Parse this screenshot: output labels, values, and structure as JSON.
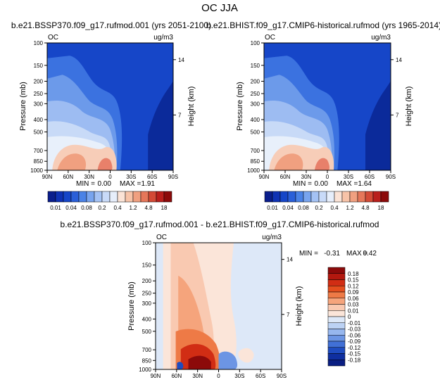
{
  "figure": {
    "title": "OC JJA"
  },
  "chart_data": [
    {
      "type": "contour",
      "title": "b.e21.BSSP370.f09_g17.rufmod.001 (yrs 2051-2100)",
      "corner_left": "OC",
      "corner_right": "ug/m3",
      "ylabel": "Pressure (mb)",
      "ylabel_right": "Height (km)",
      "pressure_ticks": [
        "100",
        "150",
        "200",
        "250",
        "300",
        "400",
        "500",
        "700",
        "850",
        "1000"
      ],
      "height_ticks": [
        "14",
        "7"
      ],
      "lat_ticks": [
        "90N",
        "60N",
        "30N",
        "0",
        "30S",
        "60S",
        "90S"
      ],
      "stats": {
        "min_label": "MIN =",
        "min": "0.00",
        "max_label": "MAX =",
        "max": "1.91"
      },
      "field": {
        "fill": "#1646c8",
        "layers": [
          {
            "name": "bands-high-upper",
            "color": "#3b72e0"
          },
          {
            "name": "bands-mid-upper",
            "color": "#6c9aea"
          },
          {
            "name": "bands-mid",
            "color": "#9dbcf2"
          },
          {
            "name": "bands-lower",
            "color": "#c8daf7"
          },
          {
            "name": "bands-boundary",
            "color": "#e8f0fb"
          },
          {
            "name": "plume-north",
            "color": "#f7cdb8"
          },
          {
            "name": "plume-core",
            "color": "#f0a080"
          },
          {
            "name": "plume-peak",
            "color": "#e8806a"
          },
          {
            "name": "low-values-south",
            "color": "#0b2a9a"
          }
        ]
      }
    },
    {
      "type": "contour",
      "title": "b.e21.BHIST.f09_g17.CMIP6-historical.rufmod (yrs 1965-2014)",
      "corner_left": "OC",
      "corner_right": "ug/m3",
      "ylabel": "Pressure (mb)",
      "ylabel_right": "Height (km)",
      "pressure_ticks": [
        "100",
        "150",
        "200",
        "250",
        "300",
        "400",
        "500",
        "700",
        "850",
        "1000"
      ],
      "height_ticks": [
        "14",
        "7"
      ],
      "lat_ticks": [
        "90N",
        "60N",
        "30N",
        "0",
        "30S",
        "60S",
        "90S"
      ],
      "stats": {
        "min_label": "MIN =",
        "min": "0.00",
        "max_label": "MAX =",
        "max": "1.64"
      },
      "field": {
        "fill": "#1646c8",
        "layers": [
          {
            "name": "bands-high-upper",
            "color": "#3b72e0"
          },
          {
            "name": "bands-mid-upper",
            "color": "#6c9aea"
          },
          {
            "name": "bands-mid",
            "color": "#9dbcf2"
          },
          {
            "name": "bands-lower",
            "color": "#c8daf7"
          },
          {
            "name": "bands-boundary",
            "color": "#e8f0fb"
          },
          {
            "name": "plume-north",
            "color": "#f7cdb8"
          },
          {
            "name": "plume-core",
            "color": "#f0a080"
          },
          {
            "name": "plume-peak",
            "color": "#e8806a"
          },
          {
            "name": "low-values-south",
            "color": "#0b2a9a"
          }
        ]
      }
    },
    {
      "type": "contour",
      "title": "b.e21.BSSP370.f09_g17.rufmod.001 - b.e21.BHIST.f09_g17.CMIP6-historical.rufmod",
      "corner_left": "OC",
      "corner_right": "ug/m3",
      "ylabel": "Pressure (mb)",
      "ylabel_right": "Height (km)",
      "pressure_ticks": [
        "100",
        "150",
        "200",
        "250",
        "300",
        "400",
        "500",
        "700",
        "850",
        "1000"
      ],
      "height_ticks": [
        "14",
        "7"
      ],
      "lat_ticks": [
        "90N",
        "60N",
        "30N",
        "0",
        "30S",
        "60S",
        "90S"
      ],
      "stats": {
        "min_label": "MIN =",
        "min": "-0.31",
        "max_label": "MAX =",
        "max": "0.42"
      }
    }
  ],
  "colorbar_abs": {
    "labels": [
      "0.01",
      "0.04",
      "0.08",
      "0.2",
      "0.4",
      "1.2",
      "4.8",
      "18"
    ],
    "colors": [
      "#0a1e8c",
      "#0f32b4",
      "#1646c8",
      "#2a5fd8",
      "#4a82e6",
      "#78a4ee",
      "#a4c2f4",
      "#c8daf8",
      "#e6eefb",
      "#fbe3d6",
      "#f7c3a8",
      "#f0a080",
      "#e5775a",
      "#d34a36",
      "#b91f1c",
      "#8c0a0a"
    ]
  },
  "colorbar_diff": {
    "labels": [
      "0.18",
      "0.15",
      "0.12",
      "0.09",
      "0.06",
      "0.03",
      "0.01",
      "0",
      "-0.01",
      "-0.03",
      "-0.06",
      "-0.09",
      "-0.12",
      "-0.15",
      "-0.18"
    ],
    "colors": [
      "#8c0a0a",
      "#b3180f",
      "#d12d14",
      "#e44e1e",
      "#ee7a46",
      "#f5a47c",
      "#f9c9b1",
      "#fbe5d9",
      "#dde8f8",
      "#bcd2f4",
      "#97b7ee",
      "#6c95e4",
      "#4170d6",
      "#1f4cc0",
      "#0f2fa0",
      "#0a1e82"
    ]
  }
}
